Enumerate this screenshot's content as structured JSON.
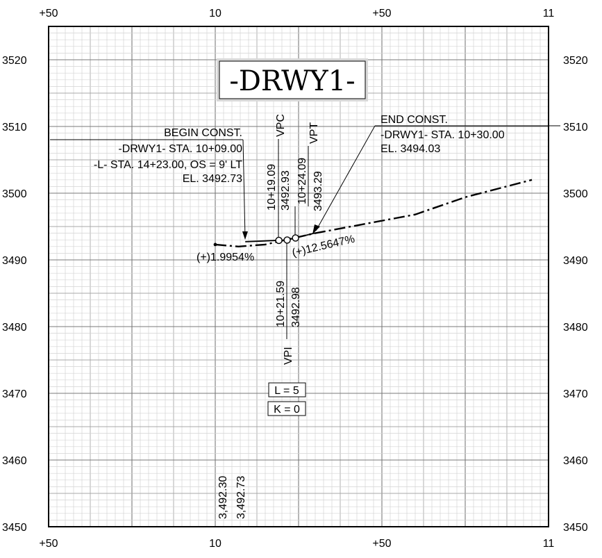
{
  "title": "-DRWY1-",
  "axes": {
    "top_ticks": [
      "+50",
      "10",
      "+50",
      "11"
    ],
    "bottom_ticks": [
      "+50",
      "10",
      "+50",
      "11"
    ],
    "left_ticks": [
      "3520",
      "3510",
      "3500",
      "3490",
      "3480",
      "3470",
      "3460",
      "3450"
    ],
    "right_ticks": [
      "3520",
      "3510",
      "3500",
      "3490",
      "3480",
      "3470",
      "3460",
      "3450"
    ]
  },
  "begin": {
    "header": "BEGIN CONST.",
    "line1": "-DRWY1- STA. 10+09.00",
    "line2": "-L- STA. 14+23.00, OS = 9' LT",
    "line3": "EL. 3492.73"
  },
  "end": {
    "header": "END CONST.",
    "line1": "-DRWY1- STA. 10+30.00",
    "line2": "EL. 3494.03"
  },
  "vpc": {
    "label": "VPC",
    "station": "10+19.09",
    "elev": "3492.93"
  },
  "vpt": {
    "label": "VPT",
    "station": "10+24.09",
    "elev": "3493.29"
  },
  "vpi": {
    "label": "VPI",
    "station": "10+21.59",
    "elev": "3492.98"
  },
  "grade_in": "(+)1.9954%",
  "grade_out": "(+)12.5647%",
  "curve_length": "L = 5",
  "curve_k": "K = 0",
  "bottom_elevs": {
    "existing": "3,492.30",
    "proposed": "3,492.73"
  },
  "profile_data": {
    "station_range": [
      950,
      1100
    ],
    "elevation_range": [
      3450,
      3525
    ],
    "existing_ground": [
      [
        1000,
        3492.3
      ],
      [
        1007,
        3492.0
      ],
      [
        1015,
        3492.3
      ],
      [
        1030,
        3494.0
      ],
      [
        1060,
        3496.8
      ],
      [
        1075,
        3499.4
      ],
      [
        1095,
        3502.0
      ]
    ],
    "proposed": [
      [
        1009,
        3492.73
      ],
      [
        1019.09,
        3492.93
      ],
      [
        1021.59,
        3492.98
      ],
      [
        1024.09,
        3493.29
      ],
      [
        1030,
        3494.03
      ]
    ],
    "pvi_points": [
      [
        1019.09,
        3492.93
      ],
      [
        1021.59,
        3492.98
      ],
      [
        1024.09,
        3493.29
      ]
    ]
  }
}
